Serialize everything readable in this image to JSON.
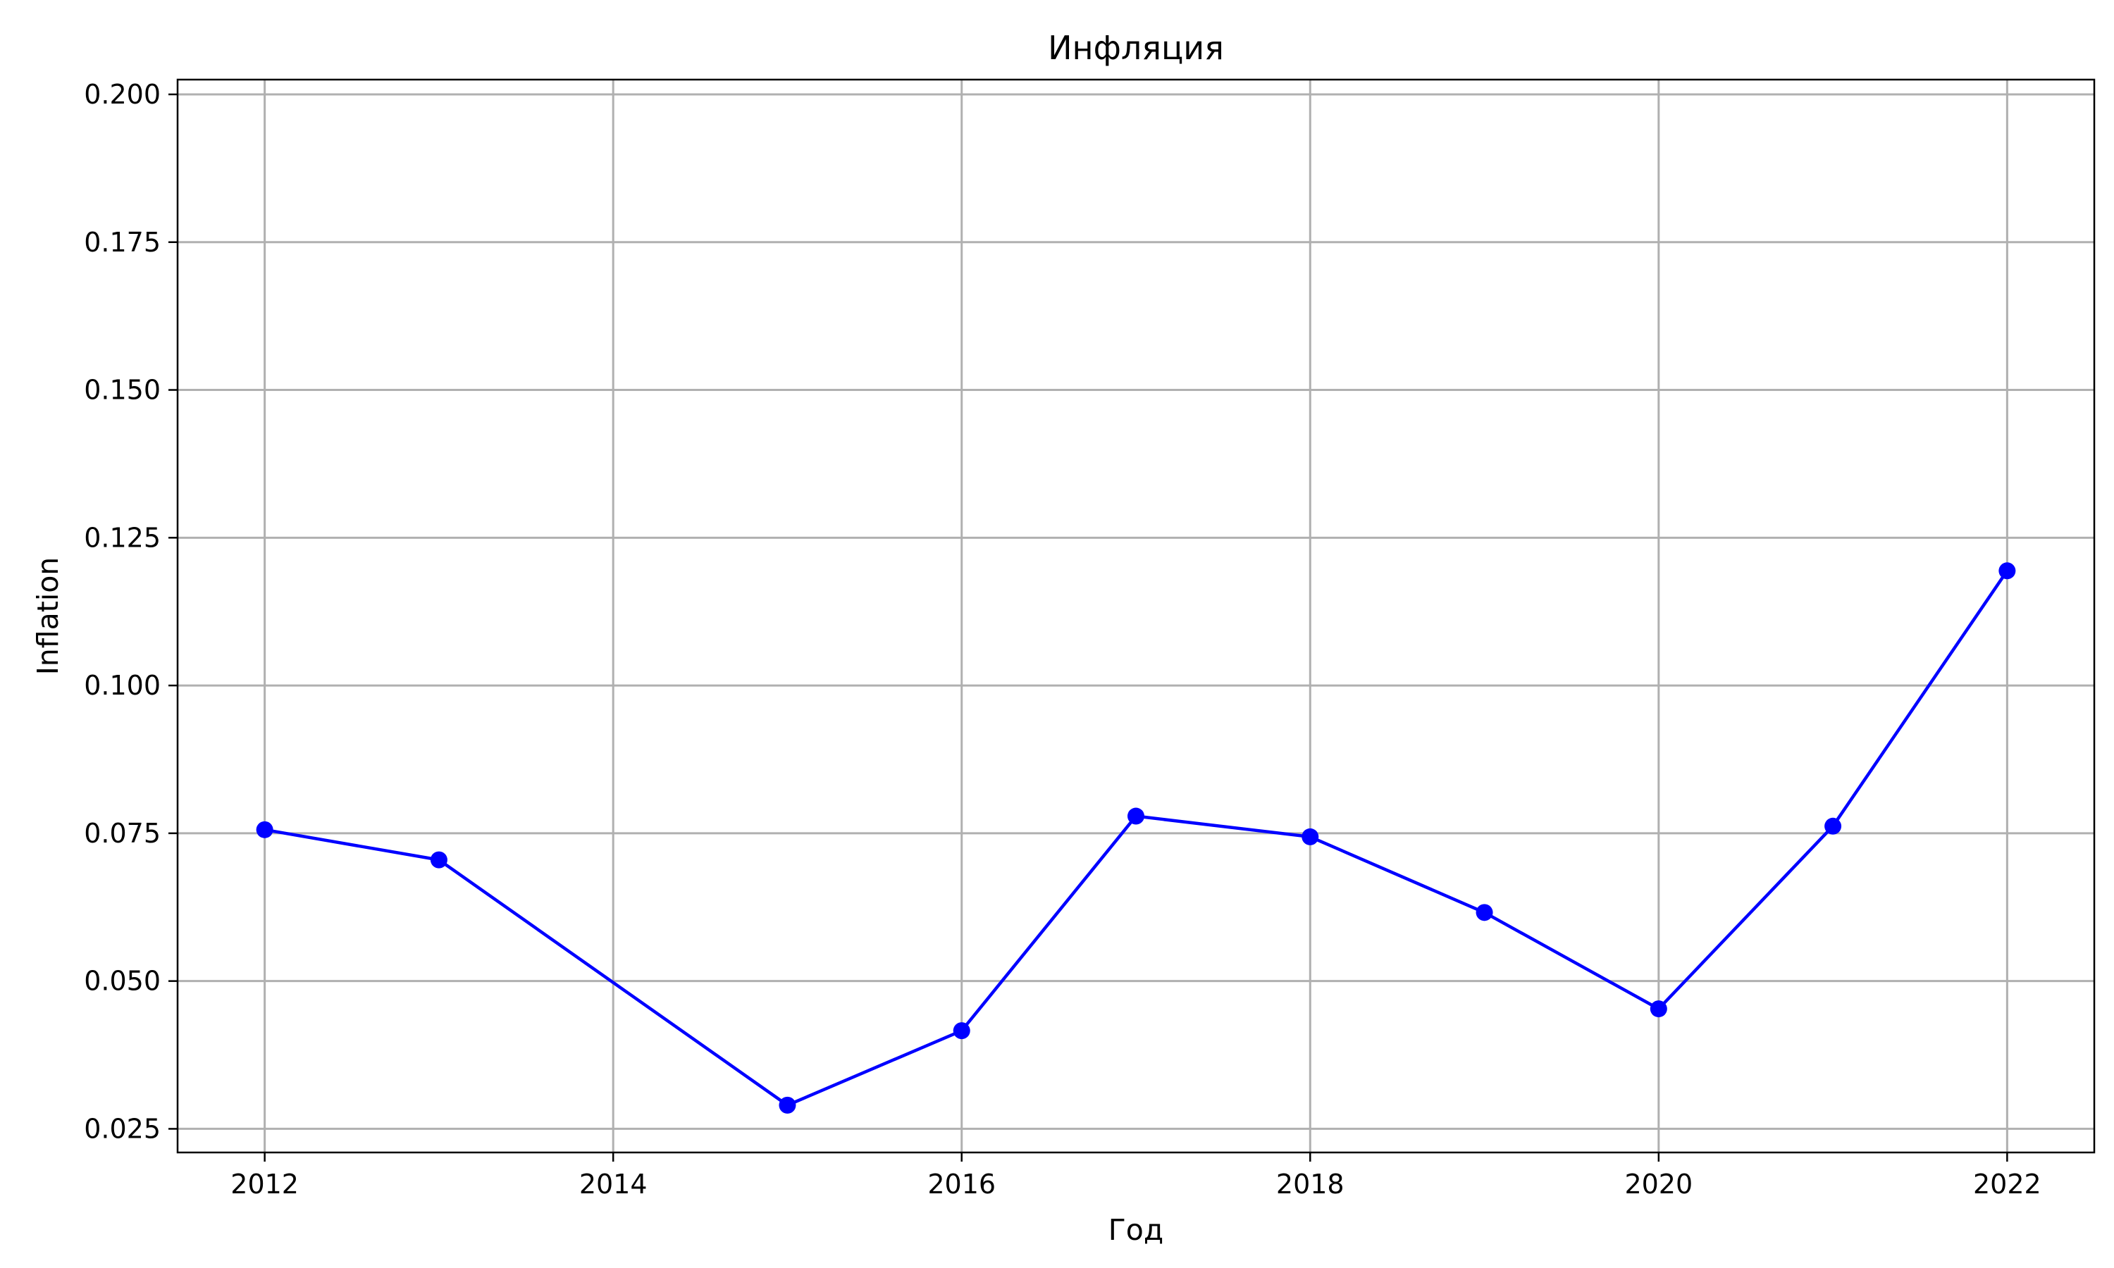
{
  "chart_data": {
    "type": "line",
    "title": "Инфляция",
    "xlabel": "Год",
    "ylabel": "Inflation",
    "x": [
      2012,
      2013,
      2015,
      2016,
      2017,
      2018,
      2019,
      2020,
      2021,
      2022
    ],
    "series": [
      {
        "name": "",
        "values": [
          0.0756,
          0.0705,
          0.029,
          0.0416,
          0.0779,
          0.0744,
          0.0616,
          0.0453,
          0.0762,
          0.1194
        ]
      }
    ],
    "xlim": [
      2011.5,
      2022.5
    ],
    "ylim": [
      0.021,
      0.2025
    ],
    "xticks": [
      2012,
      2014,
      2016,
      2018,
      2020,
      2022
    ],
    "yticks": [
      0.025,
      0.05,
      0.075,
      0.1,
      0.125,
      0.15,
      0.175,
      0.2
    ],
    "xtick_labels": [
      "2012",
      "2014",
      "2016",
      "2018",
      "2020",
      "2022"
    ],
    "ytick_labels": [
      "0.025",
      "0.050",
      "0.075",
      "0.100",
      "0.125",
      "0.150",
      "0.175",
      "0.200"
    ],
    "grid": true,
    "line_color": "#0000ff",
    "marker_color": "#0000ff",
    "grid_color": "#b0b0b0",
    "marker": "circle"
  }
}
